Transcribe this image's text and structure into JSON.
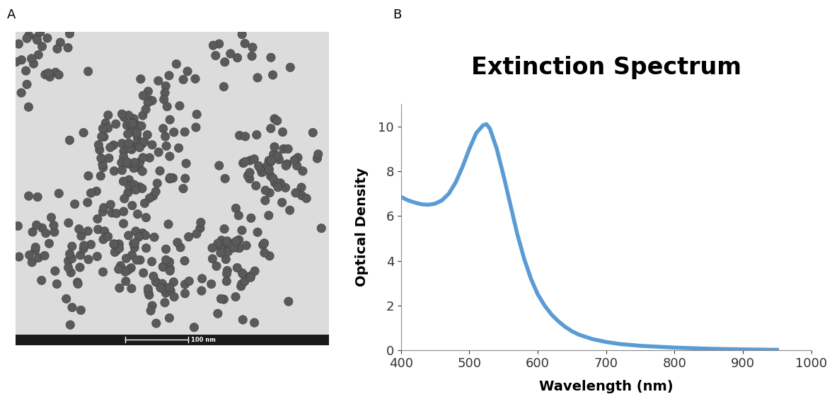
{
  "panel_labels": [
    "A",
    "B"
  ],
  "image": {
    "scale_bar_label": "100 nm"
  },
  "chart_data": {
    "type": "line",
    "title": "Extinction Spectrum",
    "x_label": "Wavelength (nm)",
    "y_label": "Optical Density",
    "x": [
      400,
      410,
      420,
      430,
      440,
      450,
      460,
      470,
      480,
      490,
      500,
      510,
      520,
      525,
      530,
      540,
      550,
      560,
      570,
      580,
      590,
      600,
      610,
      620,
      630,
      640,
      650,
      660,
      680,
      700,
      720,
      750,
      800,
      850,
      900,
      950
    ],
    "series": [
      {
        "name": "Extinction",
        "color": "#5b9bd5",
        "values": [
          6.85,
          6.7,
          6.6,
          6.52,
          6.5,
          6.55,
          6.7,
          7.0,
          7.5,
          8.2,
          9.0,
          9.7,
          10.05,
          10.1,
          9.9,
          9.0,
          7.8,
          6.5,
          5.2,
          4.1,
          3.2,
          2.5,
          2.0,
          1.6,
          1.3,
          1.05,
          0.85,
          0.7,
          0.5,
          0.37,
          0.28,
          0.2,
          0.12,
          0.07,
          0.04,
          0.02
        ]
      }
    ],
    "xlim": [
      400,
      1000
    ],
    "xticks": [
      400,
      500,
      600,
      700,
      800,
      900,
      1000
    ],
    "ylim": [
      0,
      11
    ],
    "yticks": [
      0,
      2,
      4,
      6,
      8,
      10
    ]
  }
}
